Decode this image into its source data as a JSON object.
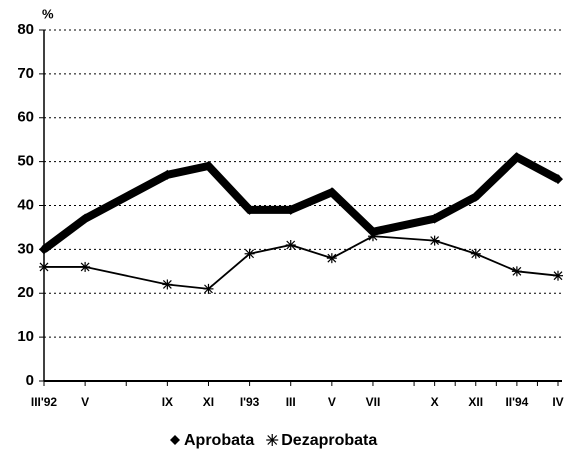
{
  "chart_data": {
    "type": "line",
    "y_label": "%",
    "categories": [
      "III'92",
      null,
      "V",
      null,
      null,
      null,
      "IX",
      null,
      "XI",
      null,
      "I'93",
      null,
      "III",
      null,
      "V",
      null,
      "VII",
      null,
      null,
      "X",
      null,
      "XII",
      null,
      "II'94",
      null,
      "IV"
    ],
    "series": [
      {
        "name": "Aprobata",
        "color": "#000000",
        "marker": "diamond",
        "values": [
          30,
          null,
          37,
          null,
          null,
          null,
          47,
          null,
          49,
          null,
          39,
          null,
          39,
          null,
          43,
          null,
          34,
          null,
          null,
          37,
          null,
          42,
          null,
          51,
          null,
          46
        ]
      },
      {
        "name": "Dezaprobata",
        "color": "#000000",
        "marker": "asterisk",
        "values": [
          26,
          null,
          26,
          null,
          null,
          null,
          22,
          null,
          21,
          null,
          29,
          null,
          31,
          null,
          28,
          null,
          33,
          null,
          null,
          32,
          null,
          29,
          null,
          25,
          null,
          24
        ]
      }
    ],
    "ylim": [
      0,
      80
    ],
    "yticks": [
      0,
      10,
      20,
      30,
      40,
      50,
      60,
      70,
      80
    ],
    "grid": true
  }
}
